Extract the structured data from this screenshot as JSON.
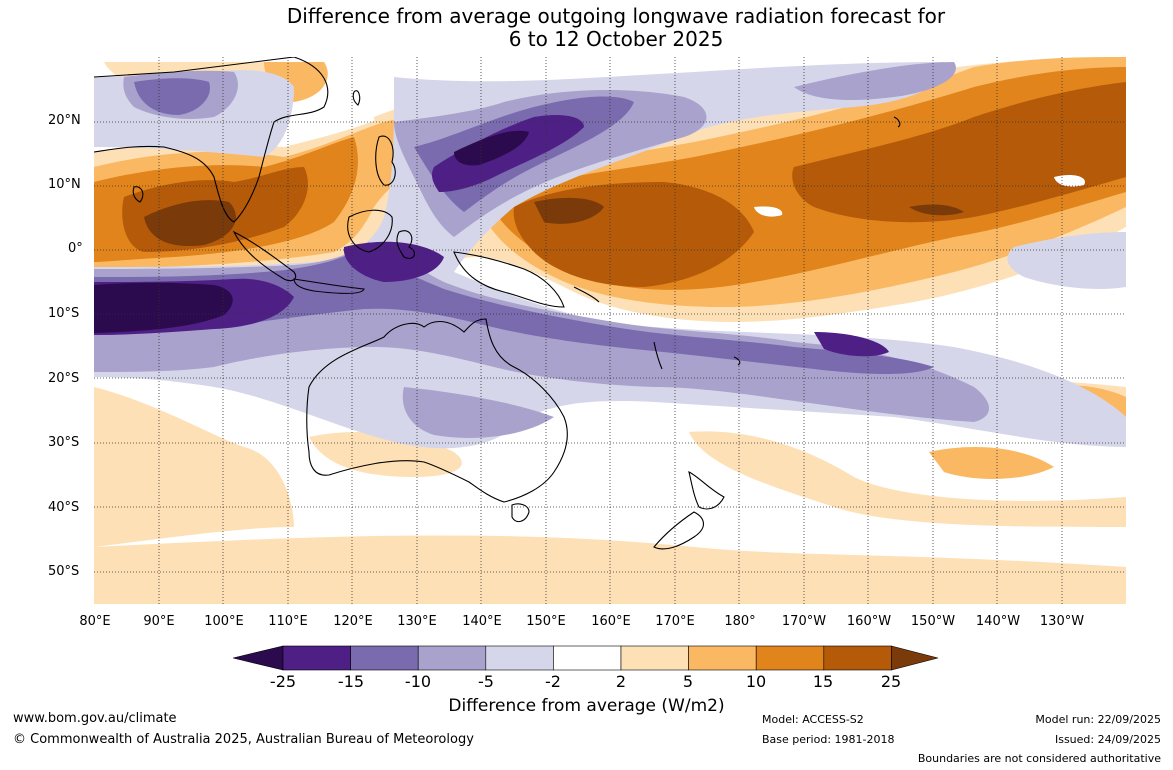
{
  "title": {
    "line1": "Difference from average outgoing longwave radiation forecast for",
    "line2": "6 to 12 October 2025"
  },
  "lat_labels": [
    "20°N",
    "10°N",
    "0°",
    "10°S",
    "20°S",
    "30°S",
    "40°S",
    "50°S"
  ],
  "lon_labels": [
    "80°E",
    "90°E",
    "100°E",
    "110°E",
    "120°E",
    "130°E",
    "140°E",
    "150°E",
    "160°E",
    "170°E",
    "180°",
    "170°W",
    "160°W",
    "150°W",
    "140°W",
    "130°W"
  ],
  "colorbar": {
    "labels": [
      "-25",
      "-15",
      "-10",
      "-5",
      "-2",
      "2",
      "5",
      "10",
      "15",
      "25"
    ],
    "colors": [
      "#2b0a4e",
      "#4e1f85",
      "#7a6aae",
      "#a9a2cd",
      "#d6d6ea",
      "#ffffff",
      "#fde0b6",
      "#fbb862",
      "#e0841b",
      "#b55a09",
      "#7a3a0a"
    ],
    "title": "Difference from average (W/m2)"
  },
  "footer": {
    "website": "www.bom.gov.au/climate",
    "copyright": "© Commonwealth of Australia 2025, Australian Bureau of Meteorology",
    "model": "Model: ACCESS-S2",
    "base_period": "Base period: 1981-2018",
    "model_run": "Model run: 22/09/2025",
    "issued": "Issued: 24/09/2025",
    "disclaimer": "Boundaries are not considered authoritative"
  }
}
